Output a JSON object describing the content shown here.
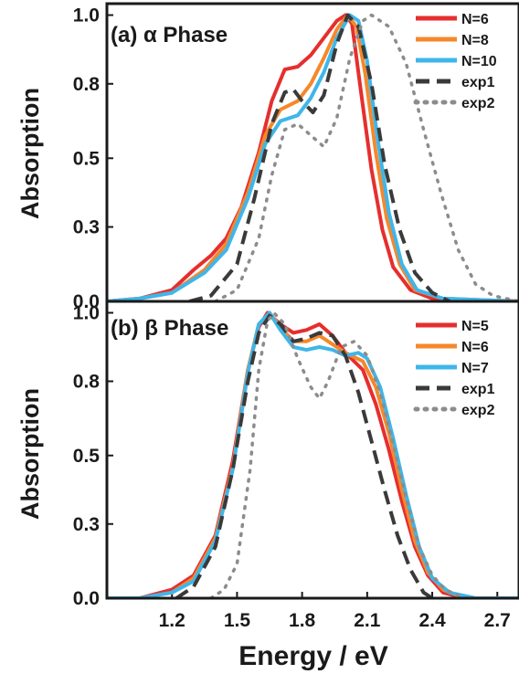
{
  "chart_data": [
    {
      "type": "line",
      "panel_label": "(a) α Phase",
      "xlabel": "",
      "ylabel": "Absorption",
      "xlim": [
        0.9,
        2.8
      ],
      "ylim": [
        0.0,
        1.04
      ],
      "yticks": [
        "0.0",
        "0.3",
        "0.5",
        "0.8",
        "1.0"
      ],
      "ytick_values": [
        0.0,
        0.26,
        0.5,
        0.76,
        1.0
      ],
      "legend_position": "top-right",
      "grid": false,
      "series": [
        {
          "name": "N=6",
          "color": "#e62e2e",
          "dash": "solid",
          "points": [
            [
              0.9,
              0.0
            ],
            [
              1.05,
              0.01
            ],
            [
              1.2,
              0.04
            ],
            [
              1.3,
              0.11
            ],
            [
              1.38,
              0.16
            ],
            [
              1.45,
              0.22
            ],
            [
              1.52,
              0.33
            ],
            [
              1.6,
              0.52
            ],
            [
              1.66,
              0.7
            ],
            [
              1.72,
              0.81
            ],
            [
              1.78,
              0.82
            ],
            [
              1.84,
              0.86
            ],
            [
              1.9,
              0.92
            ],
            [
              1.96,
              0.98
            ],
            [
              2.0,
              1.0
            ],
            [
              2.03,
              0.97
            ],
            [
              2.07,
              0.74
            ],
            [
              2.12,
              0.46
            ],
            [
              2.17,
              0.25
            ],
            [
              2.22,
              0.12
            ],
            [
              2.3,
              0.04
            ],
            [
              2.4,
              0.01
            ],
            [
              2.8,
              0.0
            ]
          ]
        },
        {
          "name": "N=8",
          "color": "#f5882b",
          "dash": "solid",
          "points": [
            [
              0.9,
              0.0
            ],
            [
              1.05,
              0.01
            ],
            [
              1.2,
              0.03
            ],
            [
              1.35,
              0.11
            ],
            [
              1.45,
              0.2
            ],
            [
              1.55,
              0.38
            ],
            [
              1.63,
              0.58
            ],
            [
              1.7,
              0.67
            ],
            [
              1.78,
              0.7
            ],
            [
              1.84,
              0.76
            ],
            [
              1.9,
              0.85
            ],
            [
              1.96,
              0.95
            ],
            [
              2.01,
              1.0
            ],
            [
              2.05,
              0.96
            ],
            [
              2.09,
              0.8
            ],
            [
              2.14,
              0.52
            ],
            [
              2.19,
              0.29
            ],
            [
              2.25,
              0.13
            ],
            [
              2.32,
              0.04
            ],
            [
              2.45,
              0.01
            ],
            [
              2.8,
              0.0
            ]
          ]
        },
        {
          "name": "N=10",
          "color": "#3fb6e9",
          "dash": "solid",
          "points": [
            [
              0.9,
              0.0
            ],
            [
              1.05,
              0.01
            ],
            [
              1.2,
              0.03
            ],
            [
              1.35,
              0.1
            ],
            [
              1.45,
              0.18
            ],
            [
              1.55,
              0.36
            ],
            [
              1.63,
              0.55
            ],
            [
              1.7,
              0.63
            ],
            [
              1.78,
              0.65
            ],
            [
              1.84,
              0.71
            ],
            [
              1.9,
              0.8
            ],
            [
              1.96,
              0.92
            ],
            [
              2.02,
              1.0
            ],
            [
              2.06,
              0.98
            ],
            [
              2.1,
              0.84
            ],
            [
              2.15,
              0.56
            ],
            [
              2.2,
              0.31
            ],
            [
              2.26,
              0.13
            ],
            [
              2.33,
              0.04
            ],
            [
              2.45,
              0.01
            ],
            [
              2.8,
              0.0
            ]
          ]
        },
        {
          "name": "exp1",
          "color": "#3a3a3a",
          "dash": "dashed",
          "points": [
            [
              1.28,
              0.0
            ],
            [
              1.38,
              0.02
            ],
            [
              1.5,
              0.13
            ],
            [
              1.58,
              0.36
            ],
            [
              1.66,
              0.62
            ],
            [
              1.72,
              0.73
            ],
            [
              1.76,
              0.74
            ],
            [
              1.8,
              0.7
            ],
            [
              1.85,
              0.66
            ],
            [
              1.9,
              0.72
            ],
            [
              1.96,
              0.9
            ],
            [
              2.01,
              1.0
            ],
            [
              2.06,
              0.96
            ],
            [
              2.12,
              0.76
            ],
            [
              2.18,
              0.48
            ],
            [
              2.25,
              0.25
            ],
            [
              2.32,
              0.1
            ],
            [
              2.4,
              0.03
            ],
            [
              2.48,
              0.0
            ]
          ]
        },
        {
          "name": "exp2",
          "color": "#8c8c8c",
          "dash": "dotted",
          "points": [
            [
              1.4,
              0.0
            ],
            [
              1.5,
              0.04
            ],
            [
              1.6,
              0.22
            ],
            [
              1.66,
              0.44
            ],
            [
              1.72,
              0.6
            ],
            [
              1.78,
              0.62
            ],
            [
              1.84,
              0.58
            ],
            [
              1.9,
              0.54
            ],
            [
              1.96,
              0.64
            ],
            [
              2.02,
              0.85
            ],
            [
              2.08,
              0.98
            ],
            [
              2.12,
              1.0
            ],
            [
              2.2,
              0.96
            ],
            [
              2.28,
              0.83
            ],
            [
              2.36,
              0.6
            ],
            [
              2.44,
              0.38
            ],
            [
              2.52,
              0.18
            ],
            [
              2.6,
              0.06
            ],
            [
              2.68,
              0.02
            ],
            [
              2.8,
              0.0
            ]
          ]
        }
      ]
    },
    {
      "type": "line",
      "panel_label": "(b) β Phase",
      "xlabel": "Energy / eV",
      "ylabel": "Absorption",
      "xlim": [
        0.9,
        2.8
      ],
      "ylim": [
        0.0,
        1.04
      ],
      "xticks": [
        "1.2",
        "1.5",
        "1.8",
        "2.1",
        "2.4",
        "2.7"
      ],
      "xtick_values": [
        1.2,
        1.5,
        1.8,
        2.1,
        2.4,
        2.7
      ],
      "yticks": [
        "0.0",
        "0.3",
        "0.5",
        "0.8",
        "1.0"
      ],
      "ytick_values": [
        0.0,
        0.26,
        0.5,
        0.76,
        1.0
      ],
      "legend_position": "top-right",
      "grid": false,
      "series": [
        {
          "name": "N=5",
          "color": "#e62e2e",
          "dash": "solid",
          "points": [
            [
              0.9,
              0.0
            ],
            [
              1.05,
              0.0
            ],
            [
              1.2,
              0.03
            ],
            [
              1.3,
              0.08
            ],
            [
              1.4,
              0.22
            ],
            [
              1.48,
              0.48
            ],
            [
              1.55,
              0.8
            ],
            [
              1.6,
              0.95
            ],
            [
              1.64,
              1.0
            ],
            [
              1.7,
              0.96
            ],
            [
              1.76,
              0.93
            ],
            [
              1.82,
              0.94
            ],
            [
              1.88,
              0.96
            ],
            [
              1.94,
              0.92
            ],
            [
              2.0,
              0.86
            ],
            [
              2.08,
              0.8
            ],
            [
              2.14,
              0.68
            ],
            [
              2.2,
              0.52
            ],
            [
              2.26,
              0.34
            ],
            [
              2.32,
              0.18
            ],
            [
              2.38,
              0.08
            ],
            [
              2.45,
              0.02
            ],
            [
              2.55,
              0.0
            ],
            [
              2.8,
              0.0
            ]
          ]
        },
        {
          "name": "N=6",
          "color": "#f5882b",
          "dash": "solid",
          "points": [
            [
              0.9,
              0.0
            ],
            [
              1.05,
              0.0
            ],
            [
              1.2,
              0.02
            ],
            [
              1.3,
              0.07
            ],
            [
              1.4,
              0.21
            ],
            [
              1.48,
              0.46
            ],
            [
              1.55,
              0.8
            ],
            [
              1.6,
              0.96
            ],
            [
              1.65,
              1.0
            ],
            [
              1.7,
              0.95
            ],
            [
              1.76,
              0.9
            ],
            [
              1.82,
              0.9
            ],
            [
              1.88,
              0.92
            ],
            [
              1.94,
              0.89
            ],
            [
              2.0,
              0.86
            ],
            [
              2.08,
              0.83
            ],
            [
              2.14,
              0.74
            ],
            [
              2.2,
              0.58
            ],
            [
              2.26,
              0.38
            ],
            [
              2.32,
              0.2
            ],
            [
              2.38,
              0.09
            ],
            [
              2.45,
              0.03
            ],
            [
              2.55,
              0.0
            ],
            [
              2.8,
              0.0
            ]
          ]
        },
        {
          "name": "N=7",
          "color": "#3fb6e9",
          "dash": "solid",
          "points": [
            [
              0.9,
              0.0
            ],
            [
              1.05,
              0.0
            ],
            [
              1.2,
              0.02
            ],
            [
              1.3,
              0.06
            ],
            [
              1.4,
              0.2
            ],
            [
              1.48,
              0.45
            ],
            [
              1.55,
              0.79
            ],
            [
              1.6,
              0.96
            ],
            [
              1.65,
              1.0
            ],
            [
              1.7,
              0.94
            ],
            [
              1.76,
              0.88
            ],
            [
              1.82,
              0.87
            ],
            [
              1.88,
              0.88
            ],
            [
              1.94,
              0.87
            ],
            [
              2.0,
              0.85
            ],
            [
              2.06,
              0.86
            ],
            [
              2.1,
              0.84
            ],
            [
              2.16,
              0.74
            ],
            [
              2.22,
              0.56
            ],
            [
              2.28,
              0.36
            ],
            [
              2.34,
              0.18
            ],
            [
              2.4,
              0.07
            ],
            [
              2.48,
              0.02
            ],
            [
              2.6,
              0.0
            ],
            [
              2.8,
              0.0
            ]
          ]
        },
        {
          "name": "exp1",
          "color": "#3a3a3a",
          "dash": "dashed",
          "points": [
            [
              1.22,
              0.0
            ],
            [
              1.3,
              0.04
            ],
            [
              1.4,
              0.18
            ],
            [
              1.48,
              0.45
            ],
            [
              1.55,
              0.76
            ],
            [
              1.6,
              0.93
            ],
            [
              1.65,
              0.99
            ],
            [
              1.7,
              0.96
            ],
            [
              1.76,
              0.9
            ],
            [
              1.82,
              0.91
            ],
            [
              1.88,
              0.93
            ],
            [
              1.94,
              0.92
            ],
            [
              2.0,
              0.85
            ],
            [
              2.06,
              0.72
            ],
            [
              2.12,
              0.55
            ],
            [
              2.18,
              0.38
            ],
            [
              2.24,
              0.22
            ],
            [
              2.3,
              0.1
            ],
            [
              2.36,
              0.02
            ],
            [
              2.4,
              0.0
            ]
          ]
        },
        {
          "name": "exp2",
          "color": "#8c8c8c",
          "dash": "dotted",
          "points": [
            [
              1.38,
              0.0
            ],
            [
              1.44,
              0.03
            ],
            [
              1.5,
              0.12
            ],
            [
              1.56,
              0.45
            ],
            [
              1.6,
              0.8
            ],
            [
              1.64,
              0.97
            ],
            [
              1.67,
              1.0
            ],
            [
              1.72,
              0.96
            ],
            [
              1.78,
              0.84
            ],
            [
              1.84,
              0.74
            ],
            [
              1.88,
              0.7
            ],
            [
              1.92,
              0.76
            ],
            [
              1.98,
              0.88
            ],
            [
              2.04,
              0.9
            ],
            [
              2.1,
              0.85
            ],
            [
              2.16,
              0.72
            ],
            [
              2.22,
              0.54
            ],
            [
              2.28,
              0.35
            ],
            [
              2.34,
              0.18
            ],
            [
              2.4,
              0.08
            ],
            [
              2.46,
              0.03
            ],
            [
              2.55,
              0.0
            ],
            [
              2.8,
              0.0
            ]
          ]
        }
      ]
    }
  ]
}
